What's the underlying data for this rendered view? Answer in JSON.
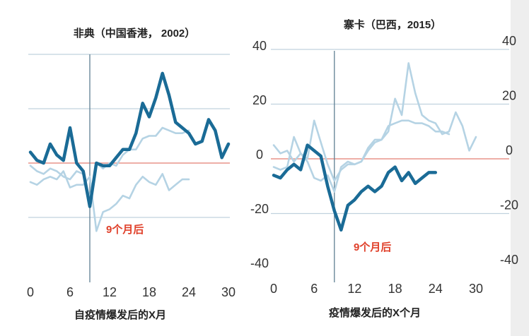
{
  "chart_data": [
    {
      "type": "line",
      "title": "非典（中国香港， 2002）",
      "xlabel": "自疫情爆发后的X月",
      "ylabel": "",
      "xlim": [
        0,
        30
      ],
      "ylim": [
        -40,
        40
      ],
      "xticks": [
        "0",
        "6",
        "12",
        "18",
        "24",
        "30"
      ],
      "yticks": [
        "40",
        "20",
        "0",
        "-20",
        "-40"
      ],
      "event_month": 9,
      "annotation": "9个月后",
      "series": [
        {
          "style": "main",
          "color": "#1a6b96",
          "x": [
            0,
            1,
            2,
            3,
            4,
            5,
            6,
            7,
            8,
            9,
            10,
            11,
            12,
            13,
            14,
            15,
            16,
            17,
            18,
            19,
            20,
            21,
            22,
            23,
            24,
            25,
            26,
            27,
            28,
            29,
            30
          ],
          "y": [
            4,
            1,
            0,
            7,
            3,
            1,
            13,
            0,
            -3,
            -16,
            0,
            -1,
            -1,
            2,
            5,
            5,
            11,
            22,
            17,
            24,
            33,
            25,
            15,
            13,
            11,
            7,
            8,
            16,
            12,
            2,
            7
          ]
        },
        {
          "style": "light",
          "color": "#b5d3e4",
          "x": [
            0,
            1,
            2,
            3,
            4,
            5,
            6,
            7,
            8,
            9,
            10,
            11,
            12,
            13,
            14,
            15,
            16,
            17,
            18,
            19,
            20,
            21,
            22,
            23,
            24
          ],
          "y": [
            -1,
            -3,
            -4,
            -2,
            -3,
            -5,
            -6,
            -3,
            -4,
            -13,
            0,
            -2,
            0,
            -1,
            3,
            5,
            5,
            9,
            10,
            10,
            13,
            12,
            11,
            11,
            12
          ]
        },
        {
          "style": "light",
          "color": "#b5d3e4",
          "x": [
            0,
            1,
            2,
            3,
            4,
            5,
            6,
            7,
            8,
            9,
            10,
            11,
            12,
            13,
            14,
            15,
            16,
            17,
            18,
            19,
            20,
            21,
            22,
            23,
            24
          ],
          "y": [
            -7,
            -8,
            -6,
            -5,
            -6,
            -3,
            -9,
            -8,
            -8,
            -5,
            -25,
            -18,
            -17,
            -15,
            -12,
            -13,
            -8,
            -5,
            -7,
            -8,
            -4,
            -10,
            -8,
            -6,
            -6
          ]
        }
      ]
    },
    {
      "type": "line",
      "title": "寨卡（巴西，2015）",
      "xlabel": "疫情爆发后的X个月",
      "ylabel": "",
      "xlim": [
        0,
        30
      ],
      "ylim": [
        -40,
        40
      ],
      "xticks": [
        "0",
        "6",
        "12",
        "18",
        "24",
        "30"
      ],
      "yticks": [
        "40",
        "20",
        "0",
        "-20",
        "-40"
      ],
      "event_month": 9,
      "annotation": "9个月后",
      "series": [
        {
          "style": "main",
          "color": "#1a6b96",
          "x": [
            0,
            1,
            2,
            3,
            4,
            5,
            6,
            7,
            8,
            9,
            10,
            11,
            12,
            13,
            14,
            15,
            16,
            17,
            18,
            19,
            20,
            21,
            22,
            23,
            24
          ],
          "y": [
            -6,
            -7,
            -4,
            -2,
            -4,
            5,
            3,
            1,
            -10,
            -19,
            -26,
            -17,
            -15,
            -12,
            -10,
            -12,
            -10,
            -5,
            -3,
            -8,
            -5,
            -9,
            -7,
            -5,
            -5
          ]
        },
        {
          "style": "light",
          "color": "#b5d3e4",
          "x": [
            0,
            1,
            2,
            3,
            4,
            5,
            6,
            7,
            8,
            9,
            10,
            11,
            12,
            13,
            14,
            15,
            16,
            17,
            18,
            19,
            20,
            21,
            22,
            23,
            24,
            25,
            26,
            27,
            28,
            29,
            30
          ],
          "y": [
            5,
            2,
            3,
            -1,
            2,
            0,
            14,
            6,
            -2,
            -8,
            -4,
            -2,
            -2,
            -1,
            3,
            6,
            7,
            10,
            22,
            16,
            35,
            24,
            16,
            14,
            13,
            9,
            10,
            17,
            12,
            3,
            8
          ]
        },
        {
          "style": "light",
          "color": "#b5d3e4",
          "x": [
            0,
            1,
            2,
            3,
            4,
            5,
            6,
            7,
            8,
            9,
            10,
            11,
            12,
            13,
            14,
            15,
            16,
            17,
            18,
            19,
            20,
            21,
            22,
            23,
            24,
            25,
            26
          ],
          "y": [
            -3,
            -4,
            -3,
            8,
            2,
            -1,
            -7,
            -8,
            -6,
            -12,
            -3,
            -1,
            -2,
            -1,
            4,
            7,
            7,
            12,
            13,
            14,
            14,
            13,
            13,
            12,
            10,
            10,
            9
          ]
        }
      ]
    }
  ]
}
